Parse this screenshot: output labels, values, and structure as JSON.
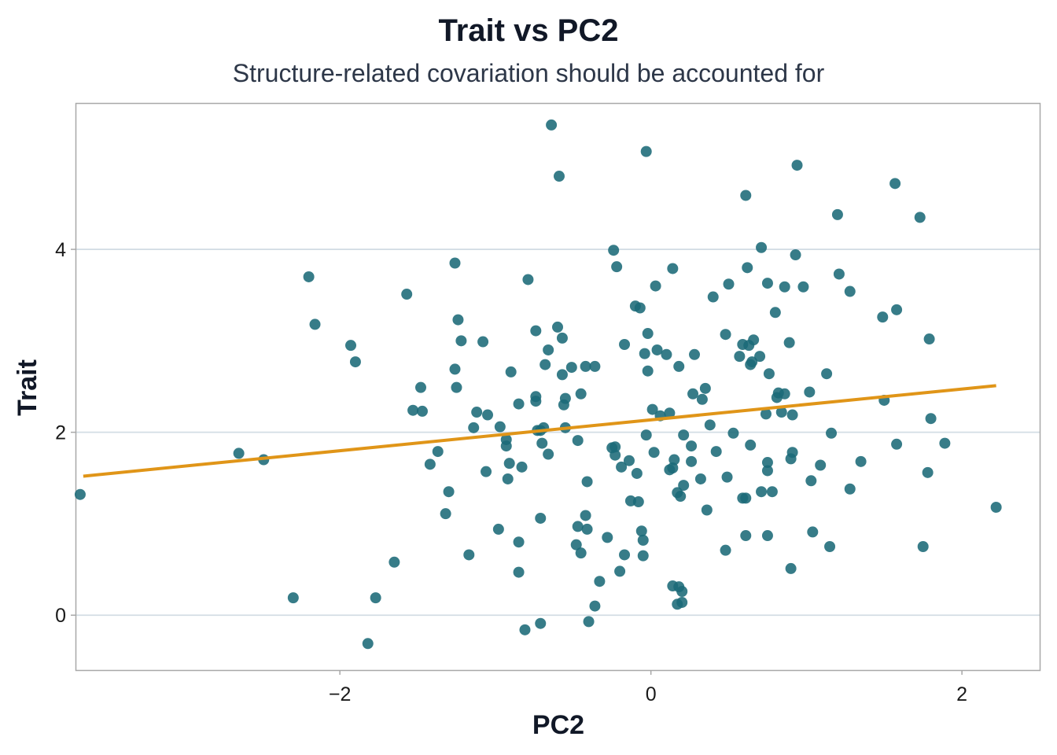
{
  "chart_data": {
    "type": "scatter",
    "title": "Trait vs PC2",
    "subtitle": "Structure-related covariation should be accounted for",
    "xlabel": "PC2",
    "ylabel": "Trait",
    "xlim": [
      -3.7,
      2.5
    ],
    "ylim": [
      -0.6,
      5.6
    ],
    "xticks": [
      -2,
      0,
      2
    ],
    "yticks": [
      0,
      2,
      4
    ],
    "grid": "horizontal",
    "point_color": "#1b6a78",
    "line_color": "#e09518",
    "fit_line": {
      "x": [
        -3.65,
        2.22
      ],
      "y": [
        1.52,
        2.51
      ]
    },
    "points": [
      [
        -3.67,
        1.32
      ],
      [
        -2.65,
        1.77
      ],
      [
        -2.49,
        1.7
      ],
      [
        -2.3,
        0.19
      ],
      [
        -2.2,
        3.7
      ],
      [
        -2.16,
        3.18
      ],
      [
        -1.93,
        2.95
      ],
      [
        -1.9,
        2.77
      ],
      [
        -1.82,
        -0.31
      ],
      [
        -1.77,
        0.19
      ],
      [
        -1.65,
        0.58
      ],
      [
        -1.57,
        3.51
      ],
      [
        -1.53,
        2.24
      ],
      [
        -1.48,
        2.49
      ],
      [
        -1.47,
        2.23
      ],
      [
        -1.42,
        1.65
      ],
      [
        -1.37,
        1.79
      ],
      [
        -1.32,
        1.11
      ],
      [
        -1.3,
        1.35
      ],
      [
        -1.26,
        3.85
      ],
      [
        -1.26,
        2.69
      ],
      [
        -1.25,
        2.49
      ],
      [
        -1.24,
        3.23
      ],
      [
        -1.22,
        3.0
      ],
      [
        -1.17,
        0.66
      ],
      [
        -1.14,
        2.05
      ],
      [
        -1.12,
        2.22
      ],
      [
        -1.08,
        2.99
      ],
      [
        -1.06,
        1.57
      ],
      [
        -1.05,
        2.19
      ],
      [
        -0.98,
        0.94
      ],
      [
        -0.97,
        2.06
      ],
      [
        -0.93,
        1.92
      ],
      [
        -0.93,
        1.85
      ],
      [
        -0.92,
        1.49
      ],
      [
        -0.91,
        1.66
      ],
      [
        -0.9,
        2.66
      ],
      [
        -0.85,
        2.31
      ],
      [
        -0.85,
        0.8
      ],
      [
        -0.85,
        0.47
      ],
      [
        -0.83,
        1.62
      ],
      [
        -0.81,
        -0.16
      ],
      [
        -0.79,
        3.67
      ],
      [
        -0.74,
        3.11
      ],
      [
        -0.74,
        2.39
      ],
      [
        -0.74,
        2.34
      ],
      [
        -0.73,
        2.02
      ],
      [
        -0.71,
        2.02
      ],
      [
        -0.71,
        1.06
      ],
      [
        -0.71,
        -0.09
      ],
      [
        -0.7,
        1.88
      ],
      [
        -0.69,
        2.05
      ],
      [
        -0.68,
        2.74
      ],
      [
        -0.66,
        2.9
      ],
      [
        -0.66,
        1.76
      ],
      [
        -0.64,
        5.36
      ],
      [
        -0.6,
        3.15
      ],
      [
        -0.59,
        4.8
      ],
      [
        -0.57,
        3.03
      ],
      [
        -0.57,
        2.63
      ],
      [
        -0.56,
        2.3
      ],
      [
        -0.55,
        2.37
      ],
      [
        -0.55,
        2.05
      ],
      [
        -0.51,
        2.71
      ],
      [
        -0.48,
        0.77
      ],
      [
        -0.47,
        1.91
      ],
      [
        -0.47,
        0.97
      ],
      [
        -0.45,
        2.42
      ],
      [
        -0.45,
        0.68
      ],
      [
        -0.42,
        2.72
      ],
      [
        -0.42,
        1.09
      ],
      [
        -0.41,
        1.46
      ],
      [
        -0.41,
        0.94
      ],
      [
        -0.4,
        -0.07
      ],
      [
        -0.36,
        2.72
      ],
      [
        -0.36,
        0.1
      ],
      [
        -0.33,
        0.37
      ],
      [
        -0.28,
        0.85
      ],
      [
        -0.25,
        1.83
      ],
      [
        -0.24,
        3.99
      ],
      [
        -0.23,
        1.84
      ],
      [
        -0.23,
        1.75
      ],
      [
        -0.22,
        3.81
      ],
      [
        -0.2,
        0.48
      ],
      [
        -0.19,
        1.62
      ],
      [
        -0.17,
        2.96
      ],
      [
        -0.17,
        0.66
      ],
      [
        -0.14,
        1.69
      ],
      [
        -0.13,
        1.25
      ],
      [
        -0.1,
        3.38
      ],
      [
        -0.09,
        1.55
      ],
      [
        -0.08,
        1.24
      ],
      [
        -0.07,
        3.36
      ],
      [
        -0.06,
        0.92
      ],
      [
        -0.05,
        0.82
      ],
      [
        -0.05,
        0.65
      ],
      [
        -0.04,
        2.86
      ],
      [
        -0.03,
        1.97
      ],
      [
        -0.03,
        5.07
      ],
      [
        -0.02,
        3.08
      ],
      [
        -0.02,
        2.67
      ],
      [
        0.01,
        2.25
      ],
      [
        0.02,
        1.78
      ],
      [
        0.03,
        3.6
      ],
      [
        0.04,
        2.9
      ],
      [
        0.06,
        2.18
      ],
      [
        0.1,
        2.85
      ],
      [
        0.12,
        2.21
      ],
      [
        0.12,
        1.59
      ],
      [
        0.14,
        1.61
      ],
      [
        0.14,
        3.79
      ],
      [
        0.14,
        0.32
      ],
      [
        0.15,
        1.7
      ],
      [
        0.17,
        0.12
      ],
      [
        0.17,
        1.34
      ],
      [
        0.18,
        0.31
      ],
      [
        0.18,
        2.72
      ],
      [
        0.19,
        1.3
      ],
      [
        0.2,
        0.14
      ],
      [
        0.2,
        0.26
      ],
      [
        0.21,
        1.42
      ],
      [
        0.21,
        1.97
      ],
      [
        0.26,
        1.68
      ],
      [
        0.26,
        1.85
      ],
      [
        0.27,
        2.42
      ],
      [
        0.28,
        2.85
      ],
      [
        0.32,
        1.49
      ],
      [
        0.33,
        2.36
      ],
      [
        0.35,
        2.48
      ],
      [
        0.36,
        1.15
      ],
      [
        0.38,
        2.08
      ],
      [
        0.4,
        3.48
      ],
      [
        0.42,
        1.79
      ],
      [
        0.48,
        0.71
      ],
      [
        0.48,
        3.07
      ],
      [
        0.49,
        1.51
      ],
      [
        0.5,
        3.62
      ],
      [
        0.53,
        1.99
      ],
      [
        0.57,
        2.83
      ],
      [
        0.59,
        2.96
      ],
      [
        0.59,
        1.28
      ],
      [
        0.61,
        1.28
      ],
      [
        0.61,
        0.87
      ],
      [
        0.61,
        4.59
      ],
      [
        0.62,
        3.8
      ],
      [
        0.63,
        2.95
      ],
      [
        0.64,
        2.74
      ],
      [
        0.64,
        1.86
      ],
      [
        0.65,
        2.77
      ],
      [
        0.66,
        3.01
      ],
      [
        0.7,
        2.83
      ],
      [
        0.71,
        1.35
      ],
      [
        0.71,
        4.02
      ],
      [
        0.74,
        2.2
      ],
      [
        0.75,
        3.63
      ],
      [
        0.75,
        1.58
      ],
      [
        0.75,
        1.67
      ],
      [
        0.75,
        0.87
      ],
      [
        0.76,
        2.64
      ],
      [
        0.78,
        1.35
      ],
      [
        0.8,
        3.31
      ],
      [
        0.81,
        2.38
      ],
      [
        0.82,
        2.43
      ],
      [
        0.84,
        2.22
      ],
      [
        0.86,
        2.42
      ],
      [
        0.86,
        3.59
      ],
      [
        0.89,
        2.98
      ],
      [
        0.9,
        0.51
      ],
      [
        0.9,
        1.71
      ],
      [
        0.91,
        1.78
      ],
      [
        0.91,
        2.19
      ],
      [
        0.93,
        3.94
      ],
      [
        0.94,
        4.92
      ],
      [
        0.98,
        3.59
      ],
      [
        1.02,
        2.44
      ],
      [
        1.03,
        1.47
      ],
      [
        1.04,
        0.91
      ],
      [
        1.09,
        1.64
      ],
      [
        1.13,
        2.64
      ],
      [
        1.15,
        0.75
      ],
      [
        1.16,
        1.99
      ],
      [
        1.2,
        4.38
      ],
      [
        1.21,
        3.73
      ],
      [
        1.28,
        1.38
      ],
      [
        1.28,
        3.54
      ],
      [
        1.35,
        1.68
      ],
      [
        1.49,
        3.26
      ],
      [
        1.5,
        2.35
      ],
      [
        1.57,
        4.72
      ],
      [
        1.58,
        1.87
      ],
      [
        1.58,
        3.34
      ],
      [
        1.73,
        4.35
      ],
      [
        1.75,
        0.75
      ],
      [
        1.78,
        1.56
      ],
      [
        1.79,
        3.02
      ],
      [
        1.8,
        2.15
      ],
      [
        1.89,
        1.88
      ],
      [
        2.22,
        1.18
      ]
    ]
  }
}
